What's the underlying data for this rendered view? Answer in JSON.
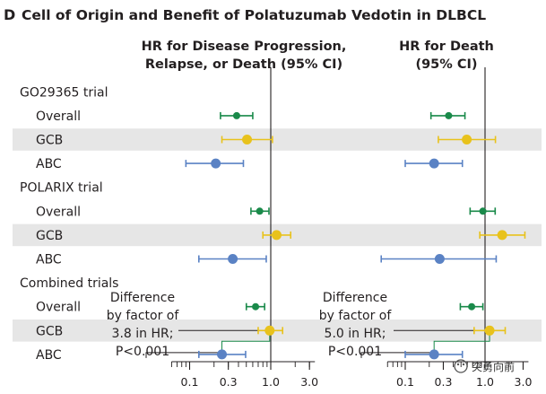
{
  "panel_letter": "D",
  "title": "Cell of Origin and Benefit of Polatuzumab Vedotin in DLBCL",
  "watermark": "突勇向前",
  "colors": {
    "overall": "#1a8a4a",
    "gcb": "#e8c21c",
    "abc": "#5a82c4",
    "band": "#e6e6e6",
    "ink": "#231f20"
  },
  "chart_data": {
    "type": "forest",
    "scale": "log",
    "xlim": [
      0.06,
      3.5
    ],
    "ref_line": 1.0,
    "tick_labels": [
      "0.1",
      "0.3",
      "1.0",
      "3.0"
    ],
    "tick_values": [
      0.1,
      0.3,
      1.0,
      3.0
    ],
    "panels": [
      {
        "id": "progression",
        "header_lines": [
          "HR for Disease Progression,",
          "Relapse, or Death (95% CI)"
        ]
      },
      {
        "id": "death",
        "header_lines": [
          "HR for Death",
          "(95% CI)"
        ]
      }
    ],
    "rows": [
      {
        "label": "GO29365 trial",
        "kind": "section",
        "shaded": false
      },
      {
        "label": "Overall",
        "kind": "overall",
        "shaded": false,
        "hr": [
          0.38,
          0.35
        ],
        "ci": [
          [
            0.24,
            0.6
          ],
          [
            0.21,
            0.56
          ]
        ]
      },
      {
        "label": "GCB",
        "kind": "gcb",
        "shaded": true,
        "hr": [
          0.51,
          0.59
        ],
        "ci": [
          [
            0.25,
            1.05
          ],
          [
            0.26,
            1.35
          ]
        ]
      },
      {
        "label": "ABC",
        "kind": "abc",
        "shaded": false,
        "hr": [
          0.21,
          0.23
        ],
        "ci": [
          [
            0.09,
            0.46
          ],
          [
            0.1,
            0.52
          ]
        ]
      },
      {
        "label": "POLARIX trial",
        "kind": "section",
        "shaded": false
      },
      {
        "label": "Overall",
        "kind": "overall",
        "shaded": false,
        "hr": [
          0.73,
          0.94
        ],
        "ci": [
          [
            0.57,
            0.95
          ],
          [
            0.65,
            1.34
          ]
        ]
      },
      {
        "label": "GCB",
        "kind": "gcb",
        "shaded": true,
        "hr": [
          1.18,
          1.64
        ],
        "ci": [
          [
            0.8,
            1.76
          ],
          [
            0.86,
            3.16
          ]
        ]
      },
      {
        "label": "ABC",
        "kind": "abc",
        "shaded": false,
        "hr": [
          0.34,
          0.27
        ],
        "ci": [
          [
            0.13,
            0.88
          ],
          [
            0.05,
            1.38
          ]
        ]
      },
      {
        "label": "Combined trials",
        "kind": "section",
        "shaded": false
      },
      {
        "label": "Overall",
        "kind": "overall",
        "shaded": false,
        "hr": [
          0.65,
          0.68
        ],
        "ci": [
          [
            0.5,
            0.84
          ],
          [
            0.49,
            0.94
          ]
        ]
      },
      {
        "label": "GCB",
        "kind": "gcb",
        "shaded": true,
        "hr": [
          0.97,
          1.14
        ],
        "ci": [
          [
            0.7,
            1.4
          ],
          [
            0.73,
            1.79
          ]
        ]
      },
      {
        "label": "ABC",
        "kind": "abc",
        "shaded": false,
        "hr": [
          0.25,
          0.23
        ],
        "ci": [
          [
            0.13,
            0.49
          ],
          [
            0.1,
            0.52
          ]
        ]
      }
    ],
    "annotations": [
      {
        "panel": 0,
        "lines": [
          "Difference",
          "by factor of",
          "3.8 in HR;",
          "P<0.001"
        ]
      },
      {
        "panel": 1,
        "lines": [
          "Difference",
          "by factor of",
          "5.0 in HR;",
          "P<0.001"
        ]
      }
    ]
  }
}
